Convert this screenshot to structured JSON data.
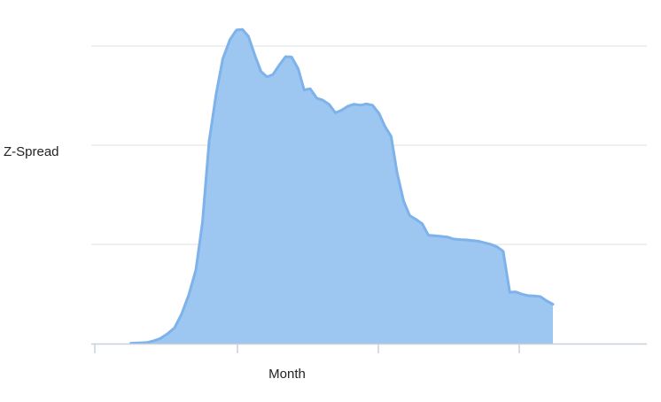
{
  "chart_data": {
    "type": "area",
    "title": "",
    "xlabel": "Month",
    "ylabel": "Z-Spread",
    "xlim": [
      0,
      100
    ],
    "ylim": [
      0,
      100
    ],
    "grid": true,
    "legend": "none",
    "x_tick_count": 4,
    "y_tick_count": 4,
    "colors": {
      "fill": "#9DC6F0",
      "line": "#7DB2EA",
      "grid": "#E2E2E2",
      "axis": "#C8D0DC"
    },
    "series": [
      {
        "values": [
          [
            6.6,
            0.1
          ],
          [
            8.2,
            0.2
          ],
          [
            9.5,
            0.3
          ],
          [
            10.7,
            0.8
          ],
          [
            11.9,
            1.5
          ],
          [
            13.3,
            3.1
          ],
          [
            14.6,
            5.0
          ],
          [
            15.9,
            9.4
          ],
          [
            17.2,
            15.4
          ],
          [
            18.5,
            23.3
          ],
          [
            19.7,
            38.2
          ],
          [
            20.9,
            63.8
          ],
          [
            22.2,
            78.8
          ],
          [
            23.4,
            89.8
          ],
          [
            24.7,
            95.8
          ],
          [
            25.9,
            98.9
          ],
          [
            27.0,
            99.1
          ],
          [
            28.1,
            96.9
          ],
          [
            29.3,
            90.8
          ],
          [
            30.4,
            85.8
          ],
          [
            31.5,
            84.1
          ],
          [
            32.6,
            84.9
          ],
          [
            33.8,
            88.0
          ],
          [
            34.9,
            90.5
          ],
          [
            36.0,
            90.4
          ],
          [
            37.2,
            86.7
          ],
          [
            38.3,
            80.0
          ],
          [
            39.4,
            80.4
          ],
          [
            40.6,
            77.4
          ],
          [
            41.7,
            76.8
          ],
          [
            42.9,
            75.4
          ],
          [
            44.0,
            72.8
          ],
          [
            45.1,
            73.6
          ],
          [
            46.3,
            74.9
          ],
          [
            47.4,
            75.5
          ],
          [
            48.6,
            75.2
          ],
          [
            49.7,
            75.6
          ],
          [
            50.8,
            75.2
          ],
          [
            52.0,
            72.6
          ],
          [
            53.1,
            68.4
          ],
          [
            54.2,
            65.4
          ],
          [
            55.3,
            53.8
          ],
          [
            56.5,
            44.9
          ],
          [
            57.6,
            40.4
          ],
          [
            58.8,
            39.1
          ],
          [
            59.9,
            37.8
          ],
          [
            61.0,
            34.2
          ],
          [
            62.2,
            34.0
          ],
          [
            63.4,
            33.8
          ],
          [
            64.5,
            33.6
          ],
          [
            65.6,
            33.0
          ],
          [
            66.8,
            32.8
          ],
          [
            67.9,
            32.7
          ],
          [
            69.0,
            32.5
          ],
          [
            70.2,
            32.3
          ],
          [
            71.3,
            31.8
          ],
          [
            72.4,
            31.3
          ],
          [
            73.6,
            30.5
          ],
          [
            74.7,
            29.1
          ],
          [
            75.9,
            16.2
          ],
          [
            77.0,
            16.3
          ],
          [
            78.1,
            15.6
          ],
          [
            79.3,
            15.1
          ],
          [
            80.4,
            15.0
          ],
          [
            81.5,
            14.8
          ],
          [
            82.7,
            13.4
          ],
          [
            83.8,
            12.4
          ]
        ]
      }
    ]
  }
}
